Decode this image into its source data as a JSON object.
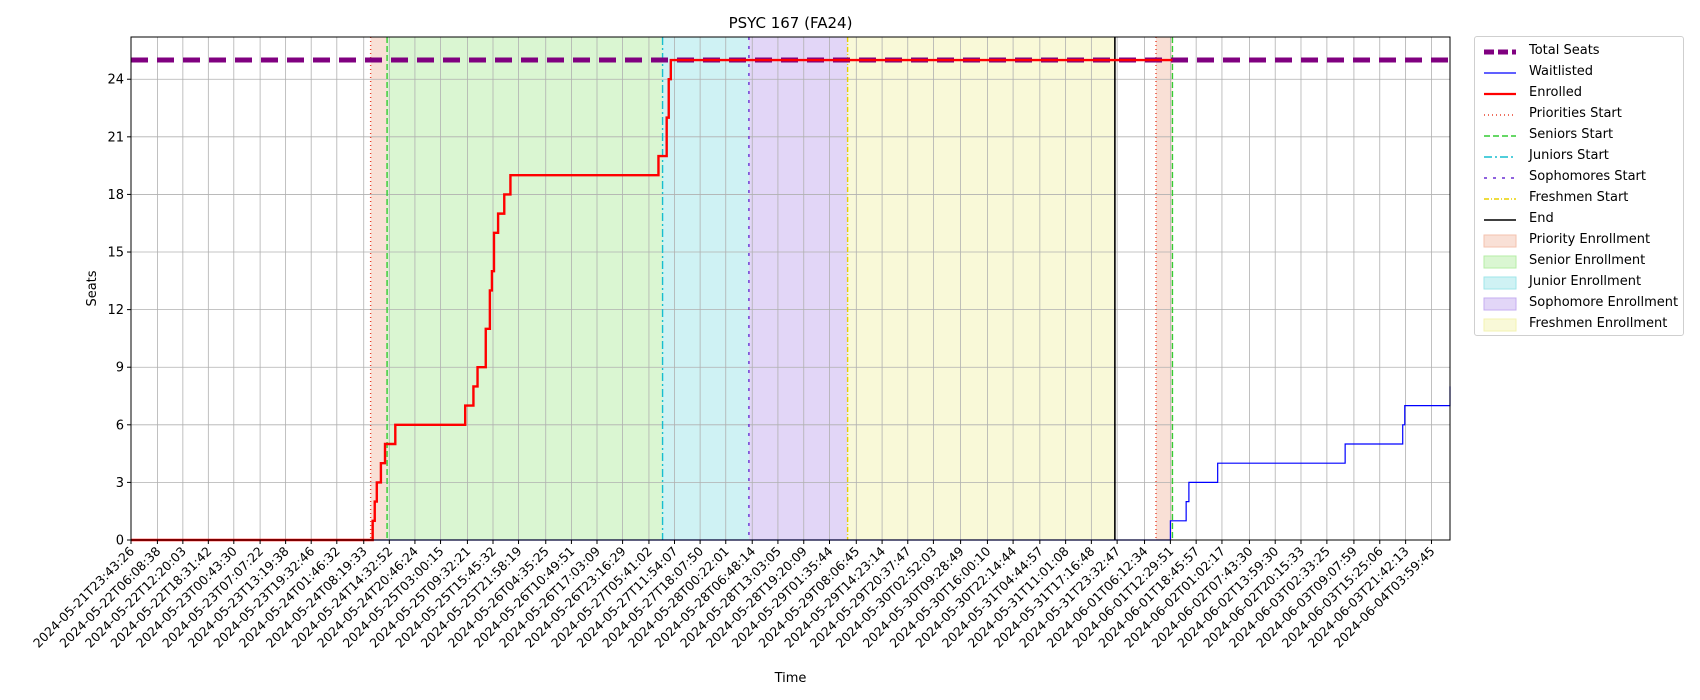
{
  "chart_data": {
    "type": "line",
    "title": "PSYC 167 (FA24)",
    "xlabel": "Time",
    "ylabel": "Seats",
    "x_domain": [
      "2024-05-21T23:43:26",
      "2024-06-04T08:30:00"
    ],
    "ylim": [
      0,
      26.2
    ],
    "yticks": [
      0,
      3,
      6,
      9,
      12,
      15,
      18,
      21,
      24
    ],
    "grid": true,
    "legend_placement": "outside-right",
    "xtick_labels": [
      "2024-05-21T23:43:26",
      "2024-05-22T06:08:38",
      "2024-05-22T12:20:03",
      "2024-05-22T18:31:42",
      "2024-05-23T00:43:30",
      "2024-05-23T07:07:22",
      "2024-05-23T13:19:38",
      "2024-05-23T19:32:46",
      "2024-05-24T01:46:32",
      "2024-05-24T08:19:33",
      "2024-05-24T14:32:52",
      "2024-05-24T20:46:24",
      "2024-05-25T03:00:15",
      "2024-05-25T09:32:21",
      "2024-05-25T15:45:32",
      "2024-05-25T21:58:19",
      "2024-05-26T04:35:25",
      "2024-05-26T10:49:51",
      "2024-05-26T17:03:09",
      "2024-05-26T23:16:29",
      "2024-05-27T05:41:02",
      "2024-05-27T11:54:07",
      "2024-05-27T18:07:50",
      "2024-05-28T00:22:01",
      "2024-05-28T06:48:14",
      "2024-05-28T13:03:05",
      "2024-05-28T19:20:09",
      "2024-05-29T01:35:44",
      "2024-05-29T08:06:45",
      "2024-05-29T14:23:14",
      "2024-05-29T20:37:47",
      "2024-05-30T02:52:03",
      "2024-05-30T09:28:49",
      "2024-05-30T16:00:10",
      "2024-05-30T22:14:44",
      "2024-05-31T04:44:57",
      "2024-05-31T11:01:08",
      "2024-05-31T17:16:48",
      "2024-05-31T23:32:47",
      "2024-06-01T06:12:34",
      "2024-06-01T12:29:51",
      "2024-06-01T18:45:57",
      "2024-06-02T01:02:17",
      "2024-06-02T07:43:30",
      "2024-06-02T13:59:30",
      "2024-06-02T20:15:33",
      "2024-06-03T02:33:25",
      "2024-06-03T09:07:59",
      "2024-06-03T15:25:06",
      "2024-06-03T21:42:13",
      "2024-06-04T03:59:45"
    ],
    "spans": [
      {
        "name": "Priority Enrollment",
        "start": "2024-05-24T10:00:00",
        "end": "2024-05-24T14:00:00",
        "color": "#f4c2ae"
      },
      {
        "name": "Senior Enrollment",
        "start": "2024-05-24T14:00:00",
        "end": "2024-05-27T09:00:00",
        "color": "#b5eea5"
      },
      {
        "name": "Junior Enrollment",
        "start": "2024-05-27T09:00:00",
        "end": "2024-05-28T06:00:00",
        "color": "#9fe6ea"
      },
      {
        "name": "Sophomore Enrollment",
        "start": "2024-05-28T06:00:00",
        "end": "2024-05-29T06:00:00",
        "color": "#c5adf0"
      },
      {
        "name": "Freshmen Enrollment",
        "start": "2024-05-29T06:00:00",
        "end": "2024-05-31T23:00:00",
        "color": "#f3f3b2"
      },
      {
        "name": "Priority Enrollment",
        "start": "2024-06-01T09:00:00",
        "end": "2024-06-01T13:00:00",
        "color": "#f4c2ae"
      }
    ],
    "vlines": [
      {
        "name": "Priorities Start",
        "x": "2024-05-24T10:00:00",
        "color": "#e8412c",
        "dash": "1,3"
      },
      {
        "name": "Seniors Start",
        "x": "2024-05-24T14:00:00",
        "color": "#33cc33",
        "dash": "6,3"
      },
      {
        "name": "Juniors Start",
        "x": "2024-05-27T09:00:00",
        "color": "#17becf",
        "dash": "8,3,2,3"
      },
      {
        "name": "Sophomores Start",
        "x": "2024-05-28T06:00:00",
        "color": "#6a2ed3",
        "dash": "3,6"
      },
      {
        "name": "Freshmen Start",
        "x": "2024-05-29T06:00:00",
        "color": "#e8d000",
        "dash": "5,2,1,2"
      },
      {
        "name": "End",
        "x": "2024-05-31T23:00:00",
        "color": "#000000",
        "dash": ""
      },
      {
        "name": "Priorities Start",
        "x": "2024-06-01T09:00:00",
        "color": "#e8412c",
        "dash": "1,3"
      },
      {
        "name": "Seniors Start",
        "x": "2024-06-01T13:00:00",
        "color": "#33cc33",
        "dash": "6,3"
      }
    ],
    "series": [
      {
        "name": "Total Seats",
        "color": "#800080",
        "style": "dashed",
        "x": [
          "2024-05-21T23:43:26",
          "2024-06-04T08:30:00"
        ],
        "y": [
          25,
          25
        ]
      },
      {
        "name": "Waitlisted",
        "color": "#0000ff",
        "style": "step",
        "x": [
          "2024-05-21T23:43:26",
          "2024-06-01T12:00:00",
          "2024-06-01T12:30:00",
          "2024-06-01T16:00:00",
          "2024-06-01T16:20:00",
          "2024-06-01T17:00:00",
          "2024-06-01T22:30:00",
          "2024-06-02T00:00:00",
          "2024-06-03T03:30:00",
          "2024-06-03T07:00:00",
          "2024-06-03T20:00:00",
          "2024-06-03T21:00:00",
          "2024-06-03T21:30:00",
          "2024-06-04T08:00:00",
          "2024-06-04T08:30:00"
        ],
        "y": [
          0,
          0,
          1,
          1,
          2,
          3,
          3,
          4,
          4,
          5,
          5,
          6,
          7,
          7,
          8
        ]
      },
      {
        "name": "Enrolled",
        "color": "#ff0000",
        "style": "step",
        "x": [
          "2024-05-21T23:43:26",
          "2024-05-24T10:30:00",
          "2024-05-24T11:00:00",
          "2024-05-24T11:30:00",
          "2024-05-24T12:30:00",
          "2024-05-24T13:30:00",
          "2024-05-24T16:00:00",
          "2024-05-24T19:00:00",
          "2024-05-25T09:00:00",
          "2024-05-25T11:00:00",
          "2024-05-25T11:30:00",
          "2024-05-25T12:00:00",
          "2024-05-25T14:00:00",
          "2024-05-25T15:00:00",
          "2024-05-25T15:30:00",
          "2024-05-25T16:00:00",
          "2024-05-25T16:30:00",
          "2024-05-25T17:00:00",
          "2024-05-25T17:30:00",
          "2024-05-25T18:30:00",
          "2024-05-25T19:00:00",
          "2024-05-25T20:00:00",
          "2024-05-25T20:30:00",
          "2024-05-25T22:00:00",
          "2024-05-27T08:00:00",
          "2024-05-27T09:30:00",
          "2024-05-27T10:00:00",
          "2024-05-27T10:30:00",
          "2024-05-27T11:00:00",
          "2024-06-01T13:00:00"
        ],
        "y": [
          0,
          1,
          2,
          3,
          4,
          5,
          6,
          6,
          7,
          8,
          8,
          9,
          11,
          13,
          14,
          16,
          16,
          17,
          17,
          18,
          18,
          19,
          19,
          19,
          20,
          20,
          22,
          24,
          25,
          25
        ]
      }
    ],
    "legend": [
      {
        "label": "Total Seats",
        "kind": "line",
        "color": "#800080",
        "width": 5,
        "dash": "10,4"
      },
      {
        "label": "Waitlisted",
        "kind": "line",
        "color": "#0000ff",
        "width": 1.3,
        "dash": ""
      },
      {
        "label": "Enrolled",
        "kind": "line",
        "color": "#ff0000",
        "width": 2.2,
        "dash": ""
      },
      {
        "label": "Priorities Start",
        "kind": "line",
        "color": "#e8412c",
        "width": 1.5,
        "dash": "1,3"
      },
      {
        "label": "Seniors Start",
        "kind": "line",
        "color": "#33cc33",
        "width": 1.5,
        "dash": "6,3"
      },
      {
        "label": "Juniors Start",
        "kind": "line",
        "color": "#17becf",
        "width": 1.5,
        "dash": "8,3,2,3"
      },
      {
        "label": "Sophomores Start",
        "kind": "line",
        "color": "#6a2ed3",
        "width": 1.5,
        "dash": "3,6"
      },
      {
        "label": "Freshmen Start",
        "kind": "line",
        "color": "#e8d000",
        "width": 1.5,
        "dash": "5,2,1,2"
      },
      {
        "label": "End",
        "kind": "line",
        "color": "#000000",
        "width": 1.5,
        "dash": ""
      },
      {
        "label": "Priority Enrollment",
        "kind": "patch",
        "color": "#f4c2ae"
      },
      {
        "label": "Senior Enrollment",
        "kind": "patch",
        "color": "#b5eea5"
      },
      {
        "label": "Junior Enrollment",
        "kind": "patch",
        "color": "#9fe6ea"
      },
      {
        "label": "Sophomore Enrollment",
        "kind": "patch",
        "color": "#c5adf0"
      },
      {
        "label": "Freshmen Enrollment",
        "kind": "patch",
        "color": "#f3f3b2"
      }
    ]
  }
}
